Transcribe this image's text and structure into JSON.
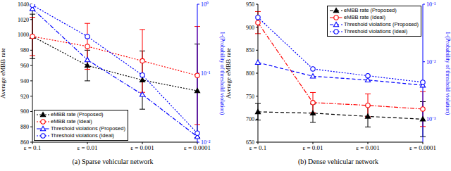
{
  "chart_data": [
    {
      "type": "line",
      "title": "(a) Sparse vehicular network",
      "ylabel": "Average eMBB rate",
      "y2label": "1-(Probability of threshold violation)",
      "categories": [
        "ε = 0.1",
        "ε = 0.01",
        "ε = 0.001",
        "ε = 0.0001"
      ],
      "ylim": [
        860,
        1040
      ],
      "yticks": [
        860,
        880,
        900,
        920,
        940,
        960,
        980,
        1000,
        1020,
        1040
      ],
      "y2lim": [
        0.01,
        1
      ],
      "y2ticks": [
        {
          "value": 0.01,
          "label": "10⁻²"
        },
        {
          "value": 0.1,
          "label": "10⁻¹"
        },
        {
          "value": 1,
          "label": "10⁰"
        }
      ],
      "log": "y2",
      "grid": false,
      "legend": "lower left",
      "series": [
        {
          "name": "eMBB rate (Proposed)",
          "color": "#000000",
          "marker": "filled_triangle",
          "line_style": "dotted",
          "values": [
            998,
            960,
            941,
            927
          ],
          "errors": [
            29,
            20,
            38,
            61
          ]
        },
        {
          "name": "eMBB rate (Ideal)",
          "color": "#ff0000",
          "marker": "open_circle",
          "line_style": "dotted",
          "values": [
            998,
            985,
            966,
            947
          ],
          "errors": [
            25,
            30,
            41,
            64
          ]
        },
        {
          "name": "Threshold violations (Proposed)",
          "color": "#0000ff",
          "marker": "open_triangle",
          "line_style": "dashdot",
          "axis": "y2",
          "values": [
            0.86,
            0.156,
            0.049,
            0.012
          ]
        },
        {
          "name": "Threshold violations (Ideal)",
          "color": "#0000ff",
          "marker": "open_circle",
          "line_style": "dotted",
          "axis": "y2",
          "values": [
            0.97,
            0.34,
            0.094,
            0.0135
          ]
        }
      ]
    },
    {
      "type": "line",
      "title": "(b) Dense vehicular network",
      "ylabel": "Average eMBB rate",
      "y2label": "1-(Probability of threshold violation)",
      "categories": [
        "ε = 0.1",
        "ε = 0.01",
        "ε = 0.001",
        "ε = 0.0001"
      ],
      "ylim": [
        650,
        950
      ],
      "yticks": [
        650,
        700,
        750,
        800,
        850,
        900,
        950
      ],
      "y2lim": [
        0.0004,
        0.1
      ],
      "y2ticks": [
        {
          "value": 0.001,
          "label": "10⁻³"
        },
        {
          "value": 0.01,
          "label": "10⁻²"
        },
        {
          "value": 0.1,
          "label": "10⁻¹"
        }
      ],
      "log": "y2",
      "grid": false,
      "legend": "upper right",
      "series": [
        {
          "name": "eMBB rate (Proposed)",
          "color": "#000000",
          "marker": "filled_triangle",
          "line_style": "dashed",
          "values": [
            716,
            713,
            706,
            700
          ],
          "errors": [
            18,
            20,
            23,
            38
          ]
        },
        {
          "name": "eMBB rate (Ideal)",
          "color": "#ff0000",
          "marker": "open_circle",
          "line_style": "dashdot",
          "values": [
            910,
            736,
            730,
            722
          ],
          "errors": [
            24,
            22,
            25,
            38
          ]
        },
        {
          "name": "Threshold violations (Proposed)",
          "color": "#0000ff",
          "marker": "open_triangle",
          "line_style": "dashed",
          "axis": "y2",
          "values": [
            0.0097,
            0.0056,
            0.0048,
            0.0039
          ]
        },
        {
          "name": "Threshold violations (Ideal)",
          "color": "#0000ff",
          "marker": "open_circle",
          "line_style": "dotted",
          "axis": "y2",
          "values": [
            0.059,
            0.0075,
            0.0057,
            0.0044
          ]
        }
      ]
    }
  ]
}
